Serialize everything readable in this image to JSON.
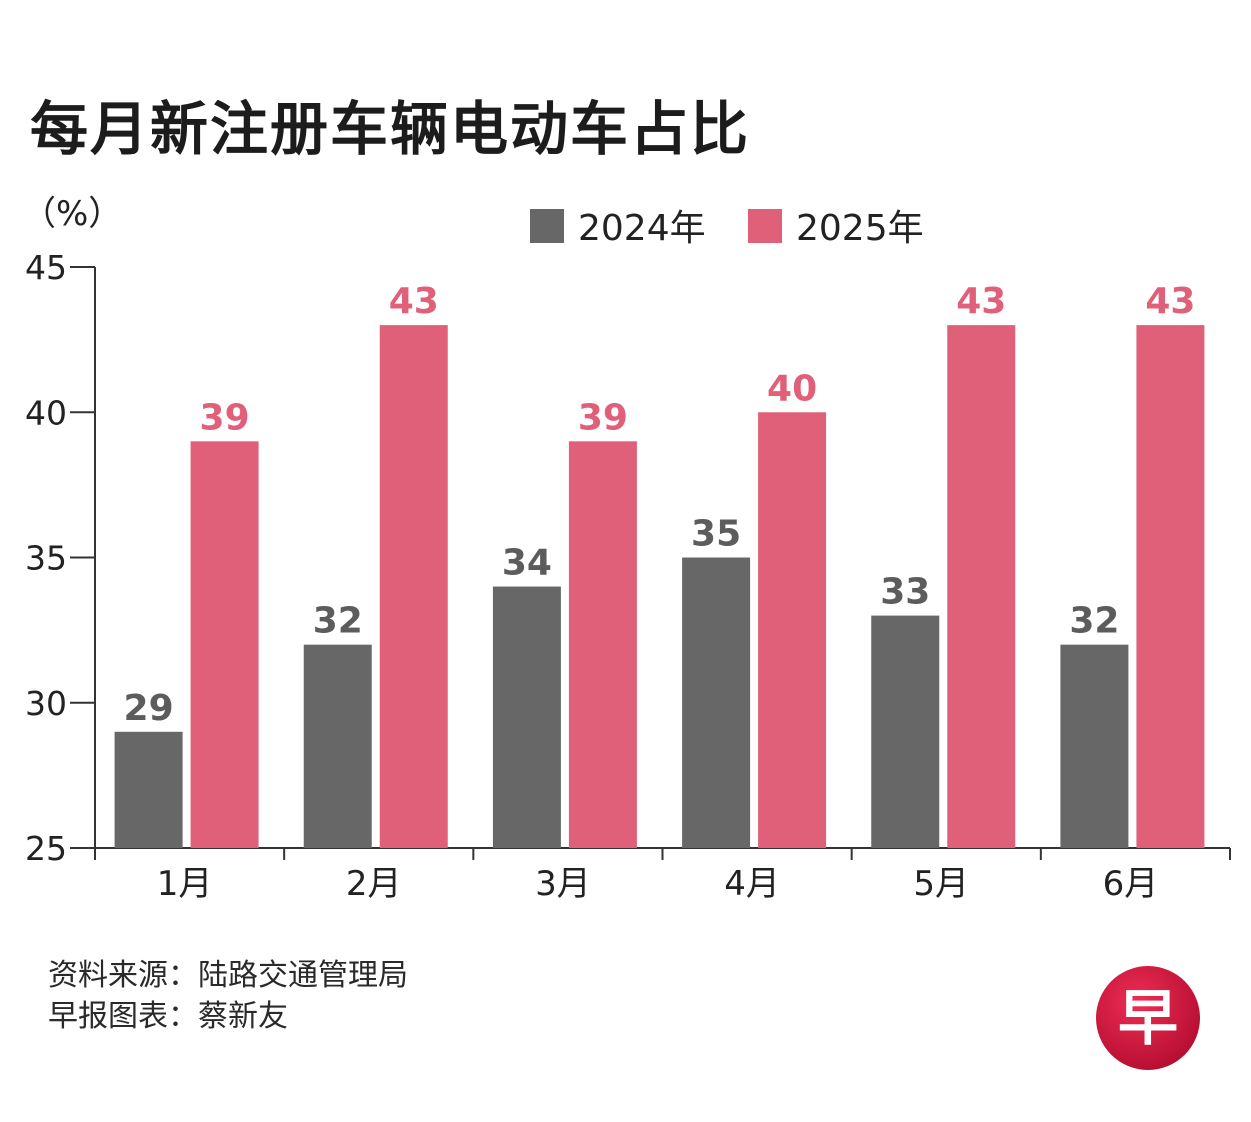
{
  "title": "每月新注册车辆电动车占比",
  "chart_data": {
    "type": "bar",
    "unit_label": "（%）",
    "categories": [
      "1月",
      "2月",
      "3月",
      "4月",
      "5月",
      "6月"
    ],
    "series": [
      {
        "name": "2024年",
        "color": "#676767",
        "label_color": "#5c5c5c",
        "values": [
          29,
          32,
          34,
          35,
          33,
          32
        ]
      },
      {
        "name": "2025年",
        "color": "#e0607a",
        "label_color": "#e0607a",
        "values": [
          39,
          43,
          39,
          40,
          43,
          43
        ]
      }
    ],
    "ylim": [
      25,
      45
    ],
    "yticks": [
      25,
      30,
      35,
      40,
      45
    ],
    "legend_position": "top-center",
    "grid": false
  },
  "footer": {
    "source": "资料来源：陆路交通管理局",
    "credit": "早报图表：蔡新友"
  },
  "logo": {
    "char": "早",
    "color": "#d0103a"
  }
}
